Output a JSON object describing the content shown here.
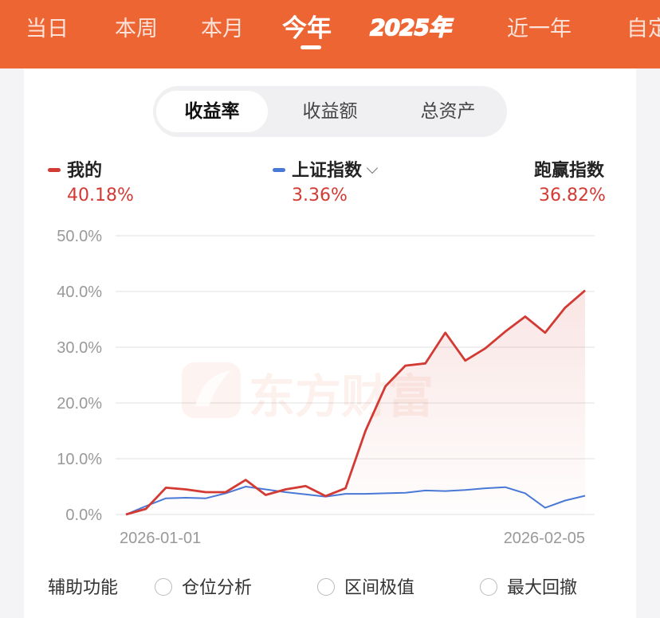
{
  "period_tabs": [
    {
      "label": "当日",
      "active": false
    },
    {
      "label": "本周",
      "active": false
    },
    {
      "label": "本月",
      "active": false
    },
    {
      "label": "今年",
      "active": true
    },
    {
      "label": "2025年",
      "active": false
    },
    {
      "label": "近一年",
      "active": false
    },
    {
      "label": "自定",
      "active": false
    }
  ],
  "segment_tabs": [
    {
      "label": "收益率",
      "active": true
    },
    {
      "label": "收益额",
      "active": false
    },
    {
      "label": "总资产",
      "active": false
    }
  ],
  "legend": {
    "mine": {
      "label": "我的",
      "value": "40.18%",
      "color": "#d23a33"
    },
    "index": {
      "label": "上证指数",
      "value": "3.36%",
      "color": "#4a78d6"
    },
    "beat": {
      "label": "跑赢指数",
      "value": "36.82%"
    }
  },
  "chart_data": {
    "type": "line",
    "x_start": "2026-01-01",
    "x_end": "2026-02-05",
    "x_tick_labels": [
      "2026-01-01",
      "2026-02-05"
    ],
    "y_tick_labels": [
      "50.0%",
      "40.0%",
      "30.0%",
      "20.0%",
      "10.0%",
      "0.0%"
    ],
    "ylim": [
      0,
      50
    ],
    "grid": true,
    "watermark": "东方财富",
    "series": [
      {
        "name": "我的",
        "color": "#d23a33",
        "values": [
          0,
          1,
          4.8,
          4.5,
          4.0,
          4.0,
          6.2,
          3.5,
          4.5,
          5.1,
          3.3,
          4.7,
          15,
          23,
          26.7,
          27.1,
          32.6,
          27.6,
          29.8,
          32.8,
          35.5,
          32.6,
          37.1,
          40.18
        ]
      },
      {
        "name": "上证指数",
        "color": "#4a78d6",
        "values": [
          0,
          1.5,
          2.9,
          3.0,
          2.9,
          3.8,
          5.0,
          4.5,
          4.0,
          3.6,
          3.2,
          3.7,
          3.7,
          3.8,
          3.9,
          4.3,
          4.2,
          4.4,
          4.7,
          4.9,
          3.8,
          1.2,
          2.5,
          3.36
        ]
      }
    ]
  },
  "auxiliary": {
    "title": "辅助功能",
    "options": [
      "仓位分析",
      "区间极值",
      "最大回撤"
    ]
  }
}
